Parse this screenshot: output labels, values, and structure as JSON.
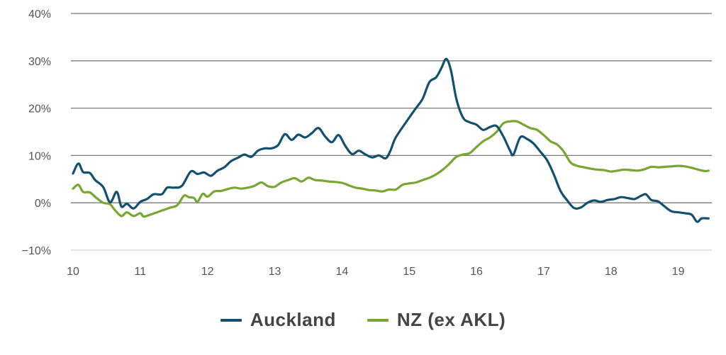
{
  "chart_data": {
    "type": "line",
    "title": "",
    "xlabel": "",
    "ylabel": "",
    "xlim": [
      10,
      19.5
    ],
    "ylim": [
      -10,
      40
    ],
    "y_ticks": [
      {
        "value": 40,
        "label": "40%"
      },
      {
        "value": 30,
        "label": "30%"
      },
      {
        "value": 20,
        "label": "20%"
      },
      {
        "value": 10,
        "label": "10%"
      },
      {
        "value": 0,
        "label": "0%"
      },
      {
        "value": -10,
        "label": "−10%"
      }
    ],
    "x_ticks": [
      {
        "value": 10,
        "label": "10"
      },
      {
        "value": 11,
        "label": "11"
      },
      {
        "value": 12,
        "label": "12"
      },
      {
        "value": 13,
        "label": "13"
      },
      {
        "value": 14,
        "label": "14"
      },
      {
        "value": 15,
        "label": "15"
      },
      {
        "value": 16,
        "label": "16"
      },
      {
        "value": 17,
        "label": "17"
      },
      {
        "value": 18,
        "label": "18"
      },
      {
        "value": 19,
        "label": "19"
      }
    ],
    "grid": "horizontal",
    "legend_position": "bottom",
    "series": [
      {
        "name": "Auckland",
        "color": "#13506d",
        "points": [
          [
            10.0,
            6.2
          ],
          [
            10.08,
            8.3
          ],
          [
            10.15,
            6.5
          ],
          [
            10.25,
            6.3
          ],
          [
            10.33,
            4.8
          ],
          [
            10.45,
            3.3
          ],
          [
            10.55,
            0.1
          ],
          [
            10.65,
            2.3
          ],
          [
            10.72,
            -0.8
          ],
          [
            10.8,
            -0.2
          ],
          [
            10.9,
            -1.2
          ],
          [
            11.0,
            0.2
          ],
          [
            11.1,
            0.8
          ],
          [
            11.2,
            1.8
          ],
          [
            11.32,
            1.8
          ],
          [
            11.4,
            3.2
          ],
          [
            11.5,
            3.2
          ],
          [
            11.62,
            3.6
          ],
          [
            11.75,
            6.6
          ],
          [
            11.85,
            6.1
          ],
          [
            11.95,
            6.4
          ],
          [
            12.05,
            5.7
          ],
          [
            12.15,
            6.8
          ],
          [
            12.25,
            7.5
          ],
          [
            12.35,
            8.8
          ],
          [
            12.45,
            9.5
          ],
          [
            12.55,
            10.2
          ],
          [
            12.65,
            9.7
          ],
          [
            12.75,
            11.0
          ],
          [
            12.85,
            11.5
          ],
          [
            12.95,
            11.5
          ],
          [
            13.05,
            12.2
          ],
          [
            13.15,
            14.5
          ],
          [
            13.25,
            13.3
          ],
          [
            13.35,
            14.4
          ],
          [
            13.45,
            13.8
          ],
          [
            13.55,
            14.7
          ],
          [
            13.65,
            15.8
          ],
          [
            13.75,
            14.0
          ],
          [
            13.85,
            12.8
          ],
          [
            13.95,
            14.3
          ],
          [
            14.05,
            12.0
          ],
          [
            14.15,
            10.3
          ],
          [
            14.25,
            11.0
          ],
          [
            14.35,
            10.2
          ],
          [
            14.45,
            9.6
          ],
          [
            14.55,
            10.0
          ],
          [
            14.65,
            9.4
          ],
          [
            14.72,
            11.0
          ],
          [
            14.8,
            13.8
          ],
          [
            15.0,
            18.0
          ],
          [
            15.1,
            20.0
          ],
          [
            15.2,
            22.0
          ],
          [
            15.3,
            25.5
          ],
          [
            15.4,
            26.5
          ],
          [
            15.48,
            28.5
          ],
          [
            15.55,
            30.4
          ],
          [
            15.62,
            28.0
          ],
          [
            15.7,
            22.0
          ],
          [
            15.8,
            18.0
          ],
          [
            15.9,
            17.0
          ],
          [
            16.0,
            16.5
          ],
          [
            16.1,
            15.4
          ],
          [
            16.2,
            16.0
          ],
          [
            16.3,
            16.2
          ],
          [
            16.4,
            14.0
          ],
          [
            16.5,
            11.0
          ],
          [
            16.55,
            10.2
          ],
          [
            16.65,
            13.8
          ],
          [
            16.75,
            13.5
          ],
          [
            16.85,
            12.5
          ],
          [
            16.95,
            10.8
          ],
          [
            17.05,
            9.0
          ],
          [
            17.15,
            6.0
          ],
          [
            17.25,
            2.5
          ],
          [
            17.35,
            0.5
          ],
          [
            17.45,
            -1.1
          ],
          [
            17.55,
            -1.0
          ],
          [
            17.65,
            0.0
          ],
          [
            17.75,
            0.5
          ],
          [
            17.85,
            0.2
          ],
          [
            17.95,
            0.6
          ],
          [
            18.05,
            0.8
          ],
          [
            18.15,
            1.2
          ],
          [
            18.25,
            1.0
          ],
          [
            18.35,
            0.8
          ],
          [
            18.45,
            1.5
          ],
          [
            18.52,
            1.8
          ],
          [
            18.6,
            0.6
          ],
          [
            18.7,
            0.3
          ],
          [
            18.8,
            -0.8
          ],
          [
            18.9,
            -1.8
          ],
          [
            19.0,
            -2.0
          ],
          [
            19.1,
            -2.2
          ],
          [
            19.2,
            -2.5
          ],
          [
            19.28,
            -4.0
          ],
          [
            19.35,
            -3.3
          ],
          [
            19.45,
            -3.3
          ]
        ]
      },
      {
        "name": "NZ (ex AKL)",
        "color": "#79a533",
        "points": [
          [
            10.0,
            3.0
          ],
          [
            10.08,
            3.8
          ],
          [
            10.15,
            2.3
          ],
          [
            10.25,
            2.2
          ],
          [
            10.35,
            1.0
          ],
          [
            10.45,
            0.0
          ],
          [
            10.55,
            -0.3
          ],
          [
            10.62,
            -1.5
          ],
          [
            10.72,
            -2.8
          ],
          [
            10.8,
            -2.0
          ],
          [
            10.9,
            -2.8
          ],
          [
            11.0,
            -2.2
          ],
          [
            11.05,
            -2.9
          ],
          [
            11.15,
            -2.5
          ],
          [
            11.25,
            -2.0
          ],
          [
            11.35,
            -1.5
          ],
          [
            11.45,
            -1.0
          ],
          [
            11.55,
            -0.5
          ],
          [
            11.65,
            1.5
          ],
          [
            11.72,
            1.2
          ],
          [
            11.8,
            1.0
          ],
          [
            11.85,
            0.2
          ],
          [
            11.93,
            1.9
          ],
          [
            12.0,
            1.3
          ],
          [
            12.1,
            2.4
          ],
          [
            12.2,
            2.5
          ],
          [
            12.3,
            2.9
          ],
          [
            12.4,
            3.2
          ],
          [
            12.5,
            3.0
          ],
          [
            12.6,
            3.2
          ],
          [
            12.7,
            3.6
          ],
          [
            12.8,
            4.3
          ],
          [
            12.9,
            3.5
          ],
          [
            13.0,
            3.4
          ],
          [
            13.1,
            4.3
          ],
          [
            13.2,
            4.8
          ],
          [
            13.3,
            5.2
          ],
          [
            13.4,
            4.5
          ],
          [
            13.5,
            5.3
          ],
          [
            13.6,
            4.8
          ],
          [
            13.7,
            4.7
          ],
          [
            13.8,
            4.5
          ],
          [
            13.9,
            4.4
          ],
          [
            14.0,
            4.2
          ],
          [
            14.1,
            3.7
          ],
          [
            14.2,
            3.2
          ],
          [
            14.3,
            3.0
          ],
          [
            14.4,
            2.7
          ],
          [
            14.5,
            2.6
          ],
          [
            14.6,
            2.4
          ],
          [
            14.7,
            2.8
          ],
          [
            14.8,
            2.8
          ],
          [
            14.9,
            3.8
          ],
          [
            15.0,
            4.1
          ],
          [
            15.1,
            4.3
          ],
          [
            15.2,
            4.8
          ],
          [
            15.3,
            5.3
          ],
          [
            15.4,
            6.0
          ],
          [
            15.5,
            7.0
          ],
          [
            15.6,
            8.3
          ],
          [
            15.7,
            9.7
          ],
          [
            15.8,
            10.2
          ],
          [
            15.9,
            10.5
          ],
          [
            16.0,
            11.8
          ],
          [
            16.1,
            13.0
          ],
          [
            16.2,
            13.8
          ],
          [
            16.3,
            15.0
          ],
          [
            16.4,
            16.8
          ],
          [
            16.5,
            17.2
          ],
          [
            16.6,
            17.2
          ],
          [
            16.7,
            16.5
          ],
          [
            16.8,
            15.8
          ],
          [
            16.9,
            15.4
          ],
          [
            17.0,
            14.3
          ],
          [
            17.1,
            13.0
          ],
          [
            17.2,
            12.3
          ],
          [
            17.3,
            10.8
          ],
          [
            17.4,
            8.5
          ],
          [
            17.5,
            7.8
          ],
          [
            17.6,
            7.5
          ],
          [
            17.7,
            7.2
          ],
          [
            17.8,
            7.0
          ],
          [
            17.9,
            6.9
          ],
          [
            18.0,
            6.6
          ],
          [
            18.1,
            6.8
          ],
          [
            18.2,
            7.0
          ],
          [
            18.3,
            6.9
          ],
          [
            18.4,
            6.8
          ],
          [
            18.5,
            7.1
          ],
          [
            18.6,
            7.6
          ],
          [
            18.7,
            7.5
          ],
          [
            18.8,
            7.6
          ],
          [
            18.9,
            7.7
          ],
          [
            19.0,
            7.8
          ],
          [
            19.1,
            7.7
          ],
          [
            19.2,
            7.4
          ],
          [
            19.3,
            7.0
          ],
          [
            19.4,
            6.7
          ],
          [
            19.45,
            6.8
          ]
        ]
      }
    ]
  },
  "legend": {
    "auckland_label": "Auckland",
    "auckland_color": "#13506d",
    "nz_label": "NZ (ex AKL)",
    "nz_color": "#79a533"
  }
}
